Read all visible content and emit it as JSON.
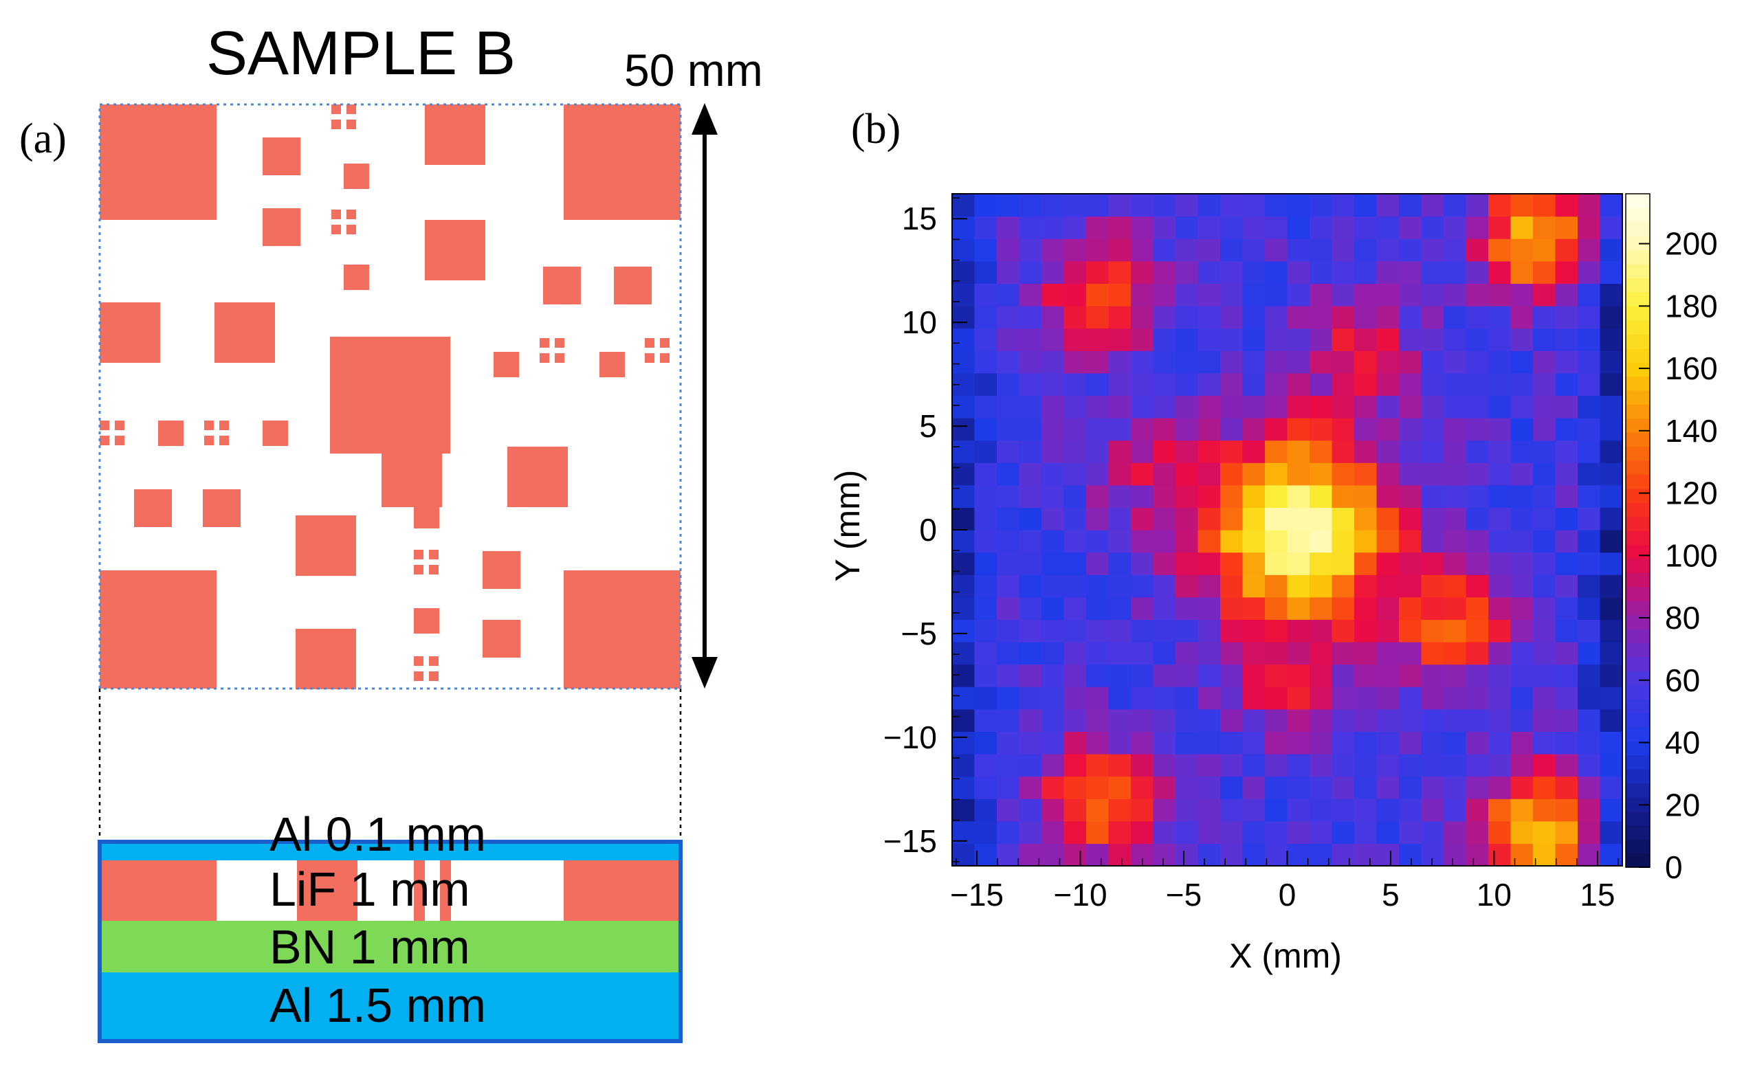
{
  "panel_a": {
    "panel_label": "(a)",
    "title": "SAMPLE B",
    "dimension_label": "50 mm",
    "layers": [
      {
        "label": "Al 0.1 mm",
        "color": "#00b0f0"
      },
      {
        "label": "LiF  1 mm",
        "color": "#ffffff"
      },
      {
        "label": "BN  1 mm",
        "color": "#7ed957"
      },
      {
        "label": "Al 1.5 mm",
        "color": "#00b0f0"
      }
    ],
    "pattern_color": "#f26f5f",
    "layer_border_color": "#1a5fcc"
  },
  "panel_b": {
    "panel_label": "(b)"
  },
  "chart_data": {
    "type": "heatmap",
    "title": "",
    "xlabel": "X (mm)",
    "ylabel": "Y (mm)",
    "xlim": [
      -16.2,
      16.2
    ],
    "ylim": [
      -16.2,
      16.2
    ],
    "xticks": [
      -15,
      -10,
      -5,
      0,
      5,
      10,
      15
    ],
    "yticks": [
      -15,
      -10,
      -5,
      0,
      5,
      10,
      15
    ],
    "zlim": [
      0,
      216
    ],
    "zticks": [
      0,
      20,
      40,
      60,
      80,
      100,
      120,
      140,
      160,
      180,
      200
    ],
    "grid": false,
    "bins": 30,
    "background_level": 55,
    "hotspots": [
      {
        "x": 0.5,
        "y": 0.0,
        "peak": 200
      },
      {
        "x": -9.0,
        "y": 11.5,
        "peak": 125
      },
      {
        "x": 12.0,
        "y": 14.0,
        "peak": 155
      },
      {
        "x": 3.5,
        "y": 9.0,
        "peak": 100
      },
      {
        "x": 8.0,
        "y": -4.5,
        "peak": 125
      },
      {
        "x": -9.0,
        "y": -13.0,
        "peak": 135
      },
      {
        "x": 12.0,
        "y": -14.5,
        "peak": 160
      },
      {
        "x": 0.0,
        "y": -8.0,
        "peak": 90
      },
      {
        "x": -7.0,
        "y": 3.0,
        "peak": 85
      }
    ]
  }
}
